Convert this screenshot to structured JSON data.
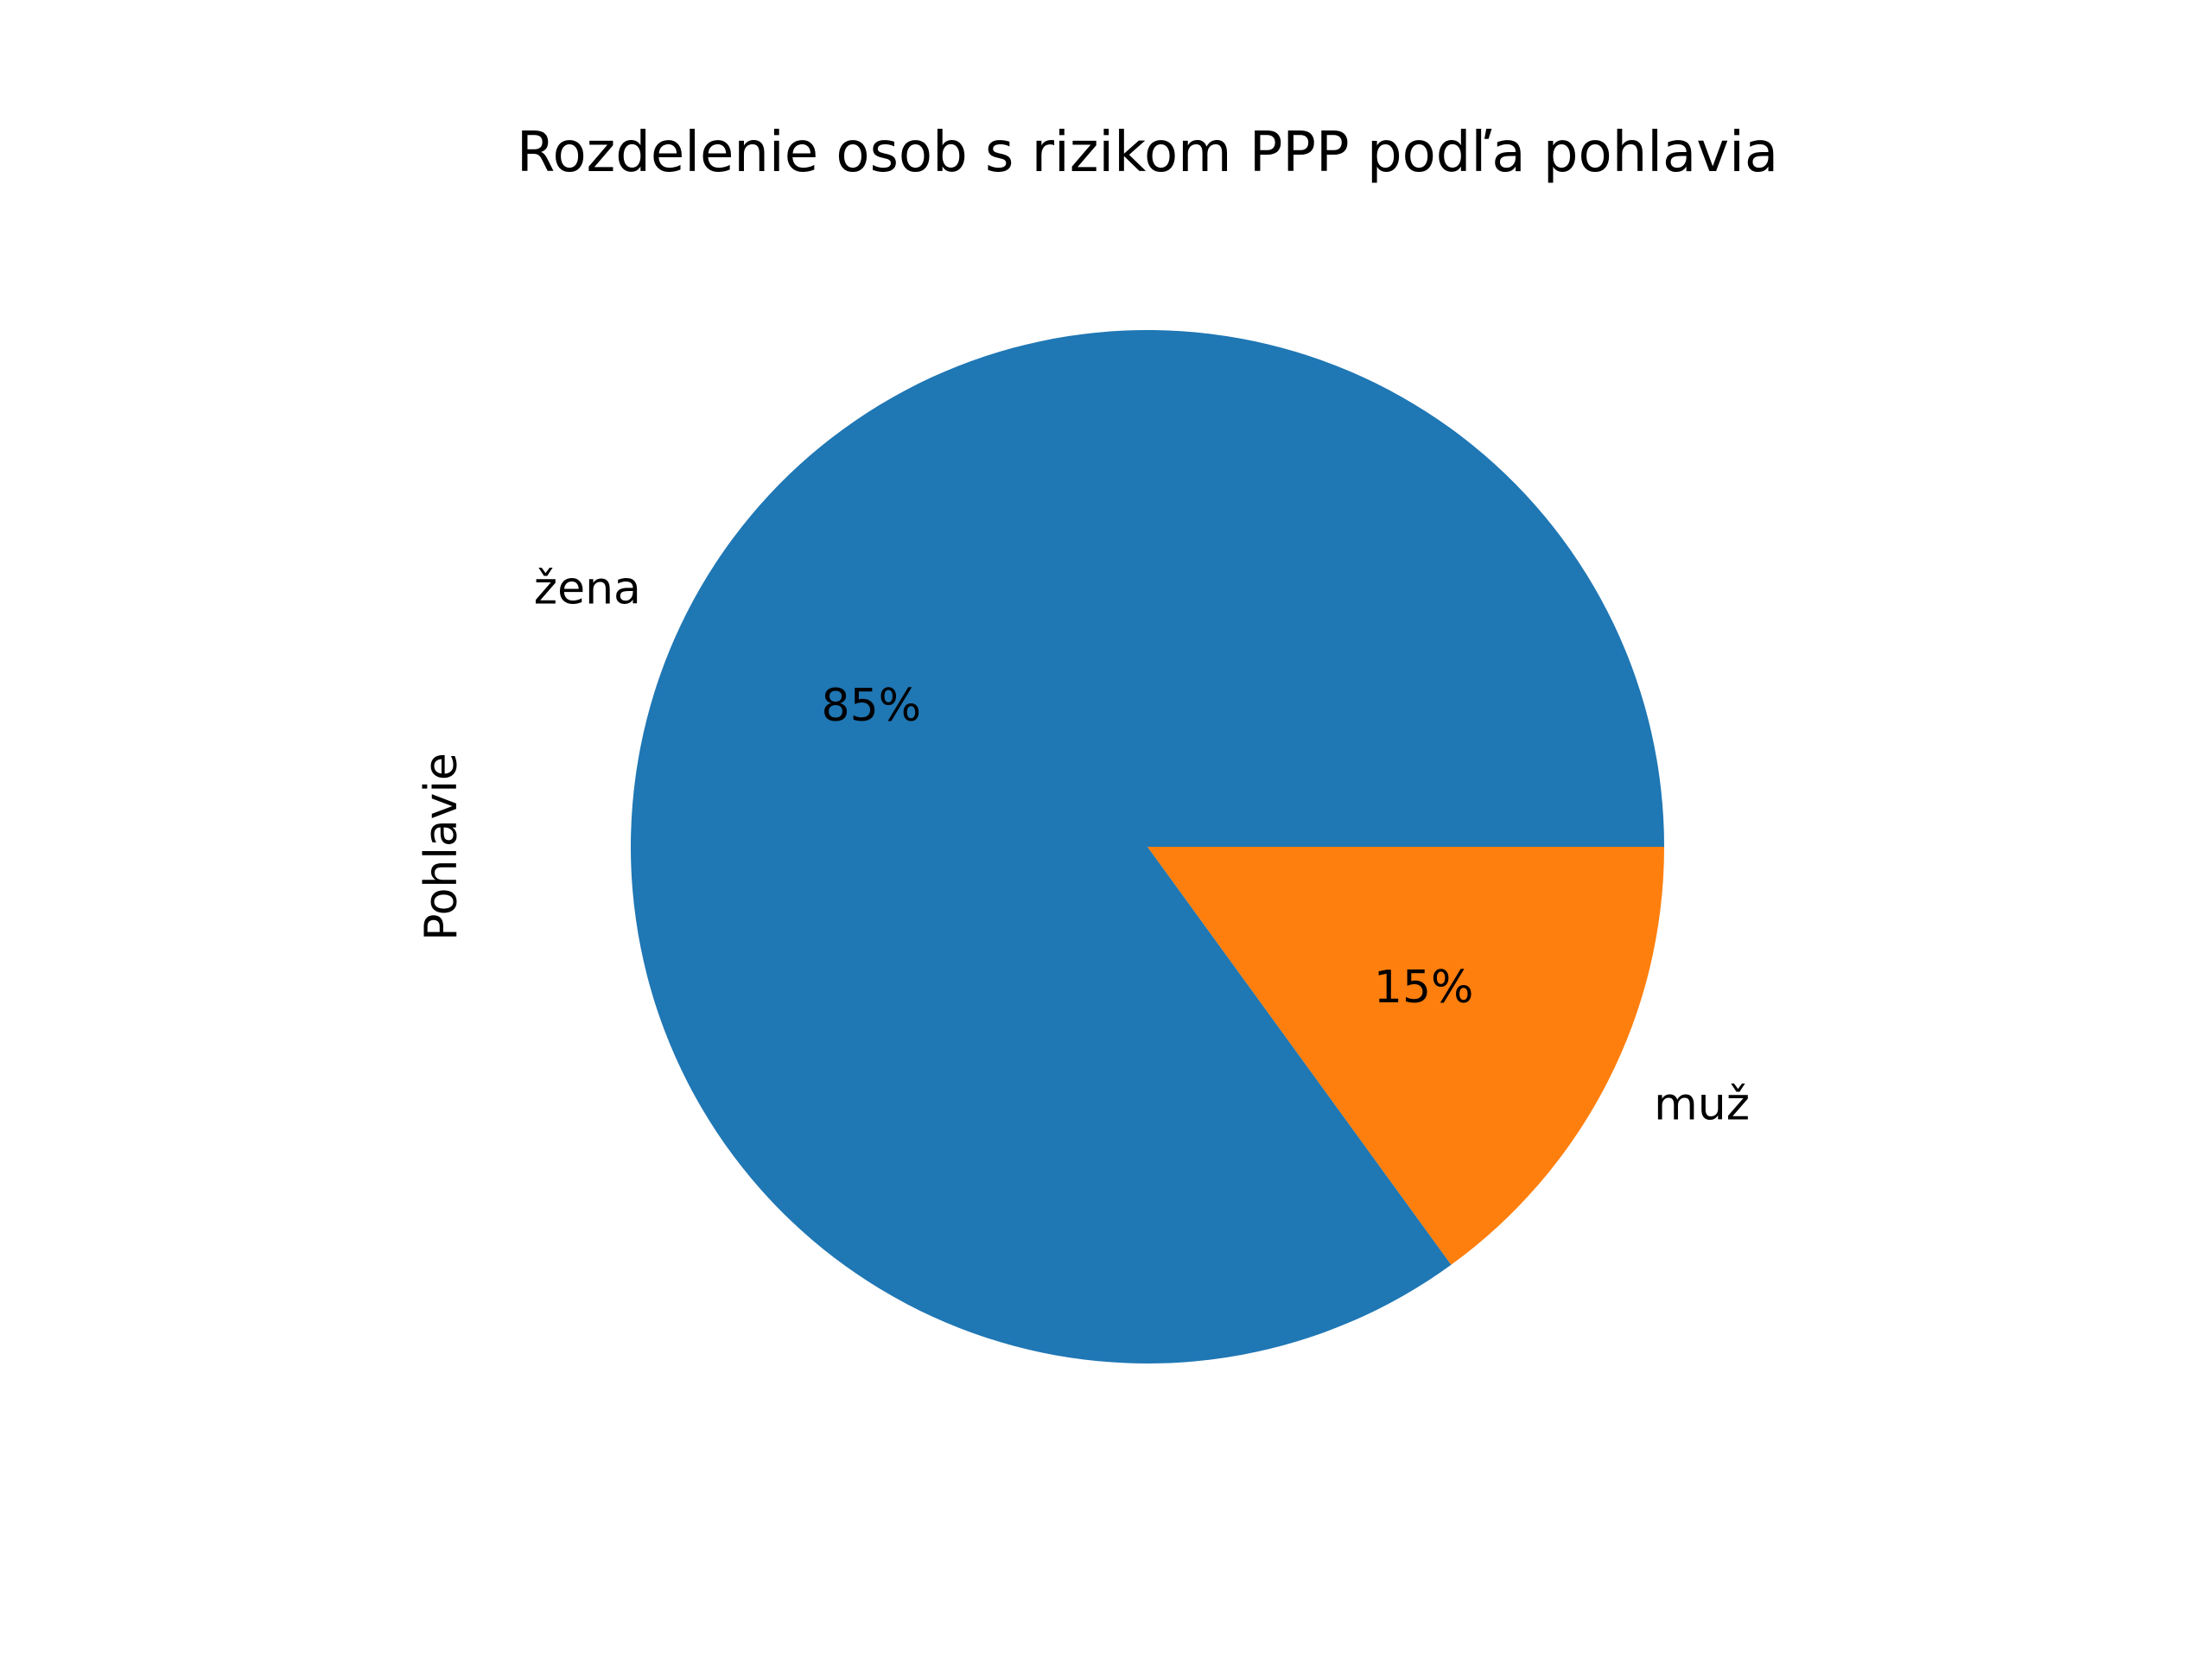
{
  "chart_data": {
    "type": "pie",
    "title": "Rozdelenie osob s rizikom PPP podľa pohlavia",
    "ylabel": "Pohlavie",
    "categories": [
      "žena",
      "muž"
    ],
    "values": [
      85,
      15
    ],
    "value_labels": [
      "85%",
      "15%"
    ],
    "colors": [
      "#1f77b4",
      "#ff7f0e"
    ],
    "start_angle_deg": 0,
    "direction": "counterclockwise",
    "legend": "none"
  }
}
